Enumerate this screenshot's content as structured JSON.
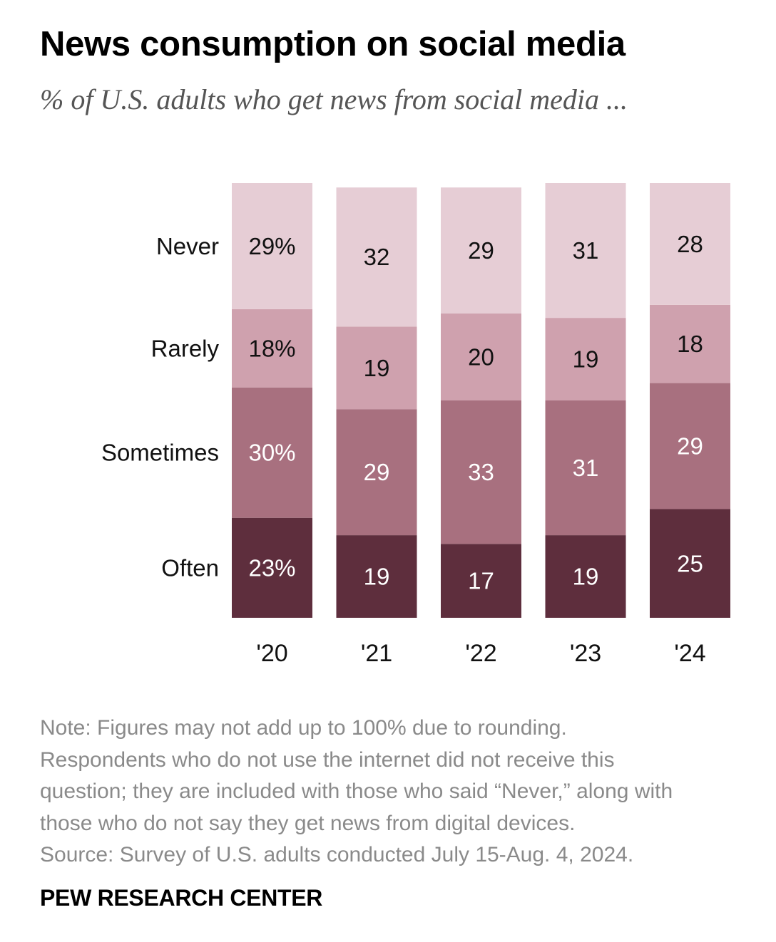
{
  "title": "News consumption on social media",
  "subtitle": "% of U.S. adults who get news from social media ...",
  "chart_data": {
    "type": "bar",
    "stacked": true,
    "categories": [
      "'20",
      "'21",
      "'22",
      "'23",
      "'24"
    ],
    "series": [
      {
        "name": "Often",
        "values": [
          23,
          19,
          17,
          19,
          25
        ],
        "labels": [
          "23%",
          "19",
          "17",
          "19",
          "25"
        ],
        "color": "#5e2e3d",
        "text_color": "#ffffff"
      },
      {
        "name": "Sometimes",
        "values": [
          30,
          29,
          33,
          31,
          29
        ],
        "labels": [
          "30%",
          "29",
          "33",
          "31",
          "29"
        ],
        "color": "#a8707f",
        "text_color": "#ffffff"
      },
      {
        "name": "Rarely",
        "values": [
          18,
          19,
          20,
          19,
          18
        ],
        "labels": [
          "18%",
          "19",
          "20",
          "19",
          "18"
        ],
        "color": "#cfa1ae",
        "text_color": "#111111"
      },
      {
        "name": "Never",
        "values": [
          29,
          32,
          29,
          31,
          28
        ],
        "labels": [
          "29%",
          "32",
          "29",
          "31",
          "28"
        ],
        "color": "#e6cdd5",
        "text_color": "#111111"
      }
    ],
    "ylim": [
      0,
      100
    ],
    "legend": "left (row labels beside first bar)",
    "xlabel": "",
    "ylabel": ""
  },
  "notes": [
    "Note: Figures may not add up to 100% due to rounding.",
    "Respondents who do not use the internet did not receive this",
    "question; they are included with those who said “Never,” along with",
    "those who do not say they get news from digital devices.",
    "Source: Survey of U.S. adults conducted July 15-Aug. 4, 2024."
  ],
  "source_brand": "PEW RESEARCH CENTER"
}
